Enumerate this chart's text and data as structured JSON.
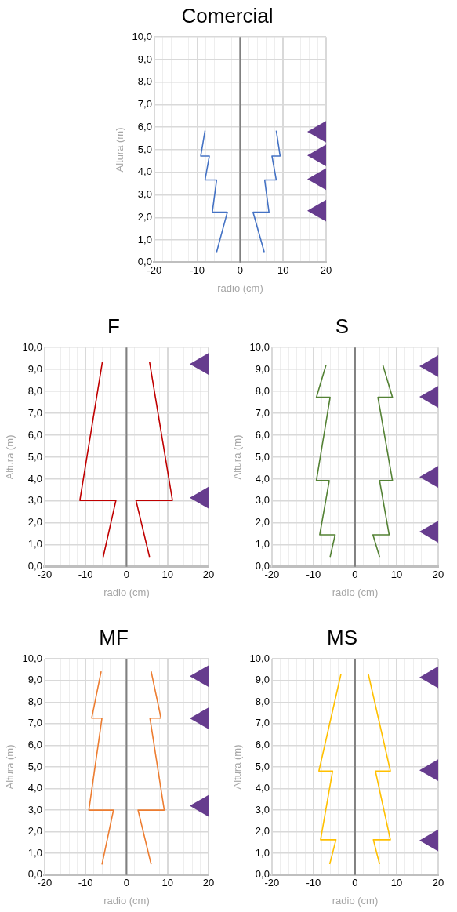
{
  "chart_data": [
    {
      "type": "line",
      "title": "Comercial",
      "xlabel": "radio (cm)",
      "ylabel": "Altura (m)",
      "xlim": [
        -20,
        20
      ],
      "ylim": [
        0,
        10
      ],
      "xticks": [
        -20,
        {
          "value": -18,
          "label": null
        },
        {
          "value": -16,
          "label": null
        },
        {
          "value": -14,
          "label": null
        },
        {
          "value": -12,
          "label": null
        },
        -10,
        {
          "value": -8,
          "label": null
        },
        {
          "value": -6,
          "label": null
        },
        {
          "value": -4,
          "label": null
        },
        {
          "value": -2,
          "label": null
        },
        0,
        {
          "value": 2,
          "label": null
        },
        {
          "value": 4,
          "label": null
        },
        {
          "value": 6,
          "label": null
        },
        {
          "value": 8,
          "label": null
        },
        10,
        {
          "value": 12,
          "label": null
        },
        {
          "value": 14,
          "label": null
        },
        {
          "value": 16,
          "label": null
        },
        {
          "value": 18,
          "label": null
        },
        20
      ],
      "yticks": [
        {
          "value": 0,
          "label": "0,0"
        },
        {
          "value": 1,
          "label": "1,0"
        },
        {
          "value": 2,
          "label": "2,0"
        },
        {
          "value": 3,
          "label": "3,0"
        },
        {
          "value": 4,
          "label": "4,0"
        },
        {
          "value": 5,
          "label": "5,0"
        },
        {
          "value": 6,
          "label": "6,0"
        },
        {
          "value": 7,
          "label": "7,0"
        },
        {
          "value": 8,
          "label": "8,0"
        },
        {
          "value": 9,
          "label": "9,0"
        },
        {
          "value": 10,
          "label": "10,0"
        }
      ],
      "grid": true,
      "legend": false,
      "ref_lines": [
        {
          "axis": "x",
          "value": 0,
          "color": "#808080"
        }
      ],
      "series": [
        {
          "type": "line",
          "color": "#4472c4",
          "x": [
            -5.5,
            -3,
            -6.5,
            -5.5,
            -8.2,
            -7.2,
            -9.2,
            -8.2
          ],
          "values": [
            0.46,
            2.23,
            2.23,
            3.66,
            3.66,
            4.72,
            4.72,
            5.85
          ]
        },
        {
          "type": "line",
          "color": "#4472c4",
          "x": [
            5.6,
            3,
            6.7,
            5.7,
            8.4,
            7.4,
            9.3,
            8.4
          ],
          "values": [
            0.46,
            2.23,
            2.23,
            3.66,
            3.66,
            4.72,
            4.72,
            5.85
          ]
        },
        {
          "type": "scatter",
          "color": "#663c8e",
          "marker": "triangle",
          "x": [
            20,
            20,
            20,
            20
          ],
          "values": [
            2.3,
            3.7,
            4.75,
            5.8
          ]
        }
      ]
    },
    {
      "type": "line",
      "title": "F",
      "xlabel": "radio (cm)",
      "ylabel": "Altura (m)",
      "xlim": [
        -20,
        20
      ],
      "ylim": [
        0,
        10
      ],
      "xticks": [
        -20,
        {
          "value": -18,
          "label": null
        },
        {
          "value": -16,
          "label": null
        },
        {
          "value": -14,
          "label": null
        },
        {
          "value": -12,
          "label": null
        },
        -10,
        {
          "value": -8,
          "label": null
        },
        {
          "value": -6,
          "label": null
        },
        {
          "value": -4,
          "label": null
        },
        {
          "value": -2,
          "label": null
        },
        0,
        {
          "value": 2,
          "label": null
        },
        {
          "value": 4,
          "label": null
        },
        {
          "value": 6,
          "label": null
        },
        {
          "value": 8,
          "label": null
        },
        10,
        {
          "value": 12,
          "label": null
        },
        {
          "value": 14,
          "label": null
        },
        {
          "value": 16,
          "label": null
        },
        {
          "value": 18,
          "label": null
        },
        20
      ],
      "yticks": [
        {
          "value": 0,
          "label": "0,0"
        },
        {
          "value": 1,
          "label": "1,0"
        },
        {
          "value": 2,
          "label": "2,0"
        },
        {
          "value": 3,
          "label": "3,0"
        },
        {
          "value": 4,
          "label": "4,0"
        },
        {
          "value": 5,
          "label": "5,0"
        },
        {
          "value": 6,
          "label": "6,0"
        },
        {
          "value": 7,
          "label": "7,0"
        },
        {
          "value": 8,
          "label": "8,0"
        },
        {
          "value": 9,
          "label": "9,0"
        },
        {
          "value": 10,
          "label": "10,0"
        }
      ],
      "grid": true,
      "legend": false,
      "ref_lines": [
        {
          "axis": "x",
          "value": 0,
          "color": "#808080"
        }
      ],
      "series": [
        {
          "type": "line",
          "color": "#c00000",
          "x": [
            -5.7,
            -2.6,
            -11.4,
            -5.9
          ],
          "values": [
            0.45,
            3.03,
            3.03,
            9.35
          ]
        },
        {
          "type": "line",
          "color": "#c00000",
          "x": [
            5.6,
            2.3,
            11.2,
            5.6
          ],
          "values": [
            0.45,
            3.03,
            3.03,
            9.35
          ]
        },
        {
          "type": "scatter",
          "color": "#663c8e",
          "marker": "triangle",
          "x": [
            20,
            20
          ],
          "values": [
            3.15,
            9.25
          ]
        }
      ]
    },
    {
      "type": "line",
      "title": "S",
      "xlabel": "radio (cm)",
      "ylabel": "Altura (m)",
      "xlim": [
        -20,
        20
      ],
      "ylim": [
        0,
        10
      ],
      "xticks": [
        -20,
        {
          "value": -18,
          "label": null
        },
        {
          "value": -16,
          "label": null
        },
        {
          "value": -14,
          "label": null
        },
        {
          "value": -12,
          "label": null
        },
        -10,
        {
          "value": -8,
          "label": null
        },
        {
          "value": -6,
          "label": null
        },
        {
          "value": -4,
          "label": null
        },
        {
          "value": -2,
          "label": null
        },
        0,
        {
          "value": 2,
          "label": null
        },
        {
          "value": 4,
          "label": null
        },
        {
          "value": 6,
          "label": null
        },
        {
          "value": 8,
          "label": null
        },
        10,
        {
          "value": 12,
          "label": null
        },
        {
          "value": 14,
          "label": null
        },
        {
          "value": 16,
          "label": null
        },
        {
          "value": 18,
          "label": null
        },
        20
      ],
      "yticks": [
        {
          "value": 0,
          "label": "0,0"
        },
        {
          "value": 1,
          "label": "1,0"
        },
        {
          "value": 2,
          "label": "2,0"
        },
        {
          "value": 3,
          "label": "3,0"
        },
        {
          "value": 4,
          "label": "4,0"
        },
        {
          "value": 5,
          "label": "5,0"
        },
        {
          "value": 6,
          "label": "6,0"
        },
        {
          "value": 7,
          "label": "7,0"
        },
        {
          "value": 8,
          "label": "8,0"
        },
        {
          "value": 9,
          "label": "9,0"
        },
        {
          "value": 10,
          "label": "10,0"
        }
      ],
      "grid": true,
      "legend": false,
      "ref_lines": [
        {
          "axis": "x",
          "value": 0,
          "color": "#808080"
        }
      ],
      "series": [
        {
          "type": "line",
          "color": "#548235",
          "x": [
            -6,
            -4.8,
            -8.5,
            -6.2,
            -9.3,
            -6,
            -9.3,
            -7
          ],
          "values": [
            0.45,
            1.46,
            1.46,
            3.93,
            3.93,
            7.73,
            7.73,
            9.19
          ]
        },
        {
          "type": "line",
          "color": "#548235",
          "x": [
            5.9,
            4.3,
            8.2,
            5.9,
            9,
            5.5,
            9,
            6.7
          ],
          "values": [
            0.45,
            1.46,
            1.46,
            3.93,
            3.93,
            7.73,
            7.73,
            9.19
          ]
        },
        {
          "type": "scatter",
          "color": "#663c8e",
          "marker": "triangle",
          "x": [
            20,
            20,
            20,
            20
          ],
          "values": [
            1.6,
            4.1,
            7.75,
            9.15
          ]
        }
      ]
    },
    {
      "type": "line",
      "title": "MF",
      "xlabel": "radio (cm)",
      "ylabel": "Altura (m)",
      "xlim": [
        -20,
        20
      ],
      "ylim": [
        0,
        10
      ],
      "xticks": [
        -20,
        {
          "value": -18,
          "label": null
        },
        {
          "value": -16,
          "label": null
        },
        {
          "value": -14,
          "label": null
        },
        {
          "value": -12,
          "label": null
        },
        -10,
        {
          "value": -8,
          "label": null
        },
        {
          "value": -6,
          "label": null
        },
        {
          "value": -4,
          "label": null
        },
        {
          "value": -2,
          "label": null
        },
        0,
        {
          "value": 2,
          "label": null
        },
        {
          "value": 4,
          "label": null
        },
        {
          "value": 6,
          "label": null
        },
        {
          "value": 8,
          "label": null
        },
        10,
        {
          "value": 12,
          "label": null
        },
        {
          "value": 14,
          "label": null
        },
        {
          "value": 16,
          "label": null
        },
        {
          "value": 18,
          "label": null
        },
        20
      ],
      "yticks": [
        {
          "value": 0,
          "label": "0,0"
        },
        {
          "value": 1,
          "label": "1,0"
        },
        {
          "value": 2,
          "label": "2,0"
        },
        {
          "value": 3,
          "label": "3,0"
        },
        {
          "value": 4,
          "label": "4,0"
        },
        {
          "value": 5,
          "label": "5,0"
        },
        {
          "value": 6,
          "label": "6,0"
        },
        {
          "value": 7,
          "label": "7,0"
        },
        {
          "value": 8,
          "label": "8,0"
        },
        {
          "value": 9,
          "label": "9,0"
        },
        {
          "value": 10,
          "label": "10,0"
        }
      ],
      "grid": true,
      "legend": false,
      "ref_lines": [
        {
          "axis": "x",
          "value": 0,
          "color": "#808080"
        }
      ],
      "series": [
        {
          "type": "line",
          "color": "#ed7d31",
          "x": [
            -6,
            -3.2,
            -9.2,
            -6,
            -8.5,
            -6.2
          ],
          "values": [
            0.49,
            3,
            3,
            7.26,
            7.26,
            9.42
          ]
        },
        {
          "type": "line",
          "color": "#ed7d31",
          "x": [
            6,
            2.8,
            9.2,
            5.7,
            8.4,
            6
          ],
          "values": [
            0.49,
            3,
            3,
            7.26,
            7.26,
            9.42
          ]
        },
        {
          "type": "scatter",
          "color": "#663c8e",
          "marker": "triangle",
          "x": [
            20,
            20,
            20
          ],
          "values": [
            3.2,
            7.25,
            9.2
          ]
        }
      ]
    },
    {
      "type": "line",
      "title": "MS",
      "xlabel": "radio (cm)",
      "ylabel": "Altura (m)",
      "xlim": [
        -20,
        20
      ],
      "ylim": [
        0,
        10
      ],
      "xticks": [
        -20,
        {
          "value": -18,
          "label": null
        },
        {
          "value": -16,
          "label": null
        },
        {
          "value": -14,
          "label": null
        },
        {
          "value": -12,
          "label": null
        },
        -10,
        {
          "value": -8,
          "label": null
        },
        {
          "value": -6,
          "label": null
        },
        {
          "value": -4,
          "label": null
        },
        {
          "value": -2,
          "label": null
        },
        0,
        {
          "value": 2,
          "label": null
        },
        {
          "value": 4,
          "label": null
        },
        {
          "value": 6,
          "label": null
        },
        {
          "value": 8,
          "label": null
        },
        10,
        {
          "value": 12,
          "label": null
        },
        {
          "value": 14,
          "label": null
        },
        {
          "value": 16,
          "label": null
        },
        {
          "value": 18,
          "label": null
        },
        20
      ],
      "yticks": [
        {
          "value": 0,
          "label": "0,0"
        },
        {
          "value": 1,
          "label": "1,0"
        },
        {
          "value": 2,
          "label": "2,0"
        },
        {
          "value": 3,
          "label": "3,0"
        },
        {
          "value": 4,
          "label": "4,0"
        },
        {
          "value": 5,
          "label": "5,0"
        },
        {
          "value": 6,
          "label": "6,0"
        },
        {
          "value": 7,
          "label": "7,0"
        },
        {
          "value": 8,
          "label": "8,0"
        },
        {
          "value": 9,
          "label": "9,0"
        },
        {
          "value": 10,
          "label": "10,0"
        }
      ],
      "grid": true,
      "legend": false,
      "ref_lines": [
        {
          "axis": "x",
          "value": 0,
          "color": "#808080"
        }
      ],
      "series": [
        {
          "type": "line",
          "color": "#ffc000",
          "x": [
            -6.1,
            -4.6,
            -8.3,
            -5.4,
            -8.7,
            -3.4
          ],
          "values": [
            0.5,
            1.63,
            1.63,
            4.81,
            4.81,
            9.29
          ]
        },
        {
          "type": "line",
          "color": "#ffc000",
          "x": [
            5.9,
            4.4,
            8.5,
            4.9,
            8.5,
            3.2
          ],
          "values": [
            0.5,
            1.63,
            1.63,
            4.81,
            4.81,
            9.29
          ]
        },
        {
          "type": "scatter",
          "color": "#663c8e",
          "marker": "triangle",
          "x": [
            20,
            20,
            20
          ],
          "values": [
            1.6,
            4.85,
            9.15
          ]
        }
      ]
    }
  ]
}
